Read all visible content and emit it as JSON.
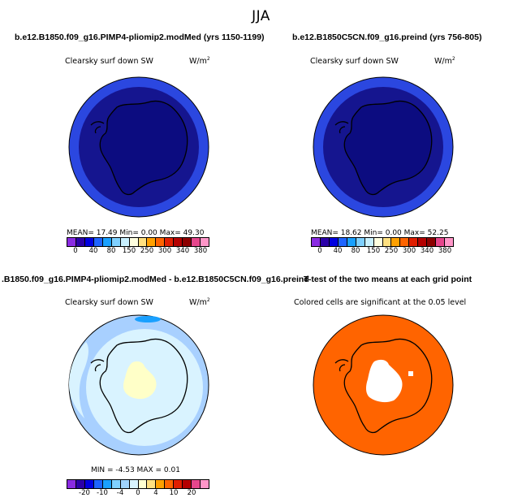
{
  "figure": {
    "title": "JJA"
  },
  "panels": [
    {
      "title": "b.e12.B1850.f09_g16.PIMP4-pliomip2.modMed (yrs 1150-1199)",
      "subtitle": "Clearsky surf down SW",
      "units": "W/m",
      "units_sup": "2",
      "stats": "MEAN=   17.49   Min=    0.00   Max=   49.30",
      "colorbar": [
        "#8a2be2",
        "#2b00a8",
        "#0000e0",
        "#1e64ff",
        "#19a0ff",
        "#7fd0ff",
        "#c8f0ff",
        "#ffffe0",
        "#ffe080",
        "#ffa000",
        "#ff6400",
        "#e01e00",
        "#b40000",
        "#8c0000",
        "#e6468c",
        "#ff96c8"
      ],
      "ticks": [
        "0",
        "40",
        "80",
        "150",
        "250",
        "300",
        "340",
        "380"
      ],
      "colors": {
        "ocean_outer": "#2b47e0",
        "ocean_inner": "#15158f",
        "land": "#0c0c80"
      }
    },
    {
      "title": "b.e12.B1850C5CN.f09_g16.preind (yrs 756-805)",
      "subtitle": "Clearsky surf down SW",
      "units": "W/m",
      "units_sup": "2",
      "stats": "MEAN=   18.62   Min=    0.00   Max=   52.25",
      "colorbar": [
        "#8a2be2",
        "#2b00a8",
        "#0000e0",
        "#1e64ff",
        "#19a0ff",
        "#7fd0ff",
        "#c8f0ff",
        "#ffffe0",
        "#ffe080",
        "#ffa000",
        "#ff6400",
        "#e01e00",
        "#b40000",
        "#8c0000",
        "#e6468c",
        "#ff96c8"
      ],
      "ticks": [
        "0",
        "40",
        "80",
        "150",
        "250",
        "300",
        "340",
        "380"
      ],
      "colors": {
        "ocean_outer": "#2b47e0",
        "ocean_inner": "#15158f",
        "land": "#0c0c80"
      }
    },
    {
      "title": ".B1850.f09_g16.PIMP4-pliomip2.modMed - b.e12.B1850C5CN.f09_g16.preind",
      "subtitle": "Clearsky surf down SW",
      "units": "W/m",
      "units_sup": "2",
      "stats": "MIN =   -4.53  MAX =    0.01",
      "colorbar": [
        "#8a2be2",
        "#2b00a8",
        "#0000e0",
        "#1e64ff",
        "#19a0ff",
        "#7fd0ff",
        "#a0d4ff",
        "#d8f4ff",
        "#ffffd0",
        "#ffe080",
        "#ffa000",
        "#ff6400",
        "#e01e00",
        "#b40000",
        "#e6468c",
        "#ff96c8"
      ],
      "ticks": [
        "-20",
        "-10",
        "-4",
        "0",
        "4",
        "10",
        "20"
      ],
      "colors": {
        "ocean_outer": "#a8d0ff",
        "ocean_inner": "#d9f3ff",
        "land": "#d9f3ff",
        "anomaly": "#ffffc8",
        "blob": "#19a0ff"
      }
    },
    {
      "title": "T-test of the two means at each grid point",
      "subtitle": "Colored cells are significant at the 0.05 level",
      "colors": {
        "fill": "#ff6400",
        "nonsig": "#ffffff"
      }
    }
  ]
}
